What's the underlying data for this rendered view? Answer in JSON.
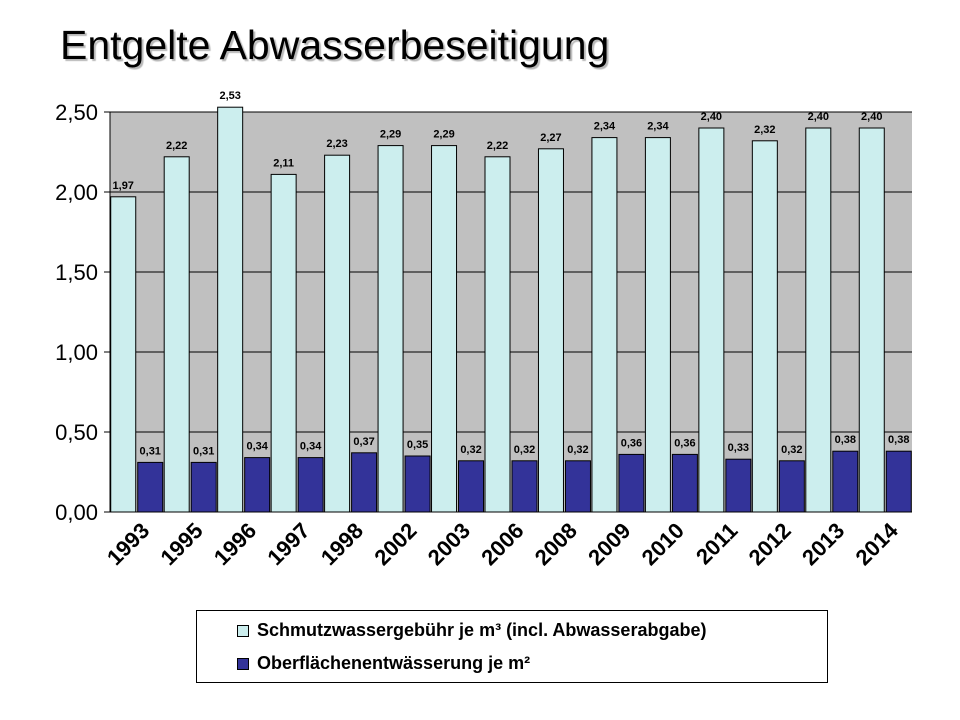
{
  "chart_data": {
    "type": "bar",
    "title": "Entgelte Abwasserbeseitigung",
    "categories": [
      "1993",
      "1995",
      "1996",
      "1997",
      "1998",
      "2002",
      "2003",
      "2006",
      "2008",
      "2009",
      "2010",
      "2011",
      "2012",
      "2013",
      "2014"
    ],
    "series": [
      {
        "name": "Schmutzwassergebühr je m³ (incl. Abwasserabgabe)",
        "color": "#cceeee",
        "values": [
          1.97,
          2.22,
          2.53,
          2.11,
          2.23,
          2.29,
          2.29,
          2.22,
          2.27,
          2.34,
          2.34,
          2.4,
          2.32,
          2.4,
          2.4
        ],
        "labels": [
          "1,97",
          "2,22",
          "2,53",
          "2,11",
          "2,23",
          "2,29",
          "2,29",
          "2,22",
          "2,27",
          "2,34",
          "2,34",
          "2,40",
          "2,32",
          "2,40",
          "2,40"
        ]
      },
      {
        "name": "Oberflächenentwässerung je m²",
        "color": "#333399",
        "values": [
          0.31,
          0.31,
          0.34,
          0.34,
          0.37,
          0.35,
          0.32,
          0.32,
          0.32,
          0.36,
          0.36,
          0.33,
          0.32,
          0.38,
          0.38
        ],
        "labels": [
          "0,31",
          "0,31",
          "0,34",
          "0,34",
          "0,37",
          "0,35",
          "0,32",
          "0,32",
          "0,32",
          "0,36",
          "0,36",
          "0,33",
          "0,32",
          "0,38",
          "0,38"
        ]
      }
    ],
    "yticks": [
      "0,00",
      "0,50",
      "1,00",
      "1,50",
      "2,00",
      "2,50"
    ],
    "ytick_values": [
      0,
      0.5,
      1.0,
      1.5,
      2.0,
      2.5
    ],
    "ylim": [
      0,
      2.5
    ],
    "xlabel": "",
    "ylabel": "",
    "grid": true,
    "legend_position": "bottom",
    "plot_background": "#c0c0c0"
  }
}
